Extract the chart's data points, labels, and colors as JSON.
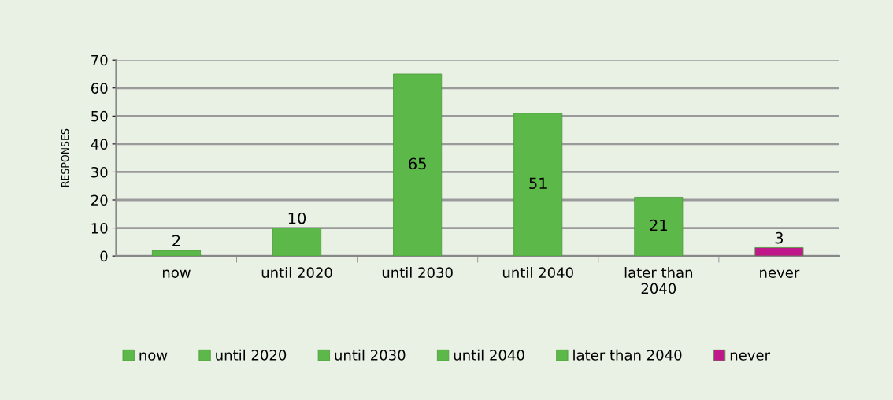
{
  "chart_data": {
    "type": "bar",
    "categories": [
      "now",
      "until 2020",
      "until 2030",
      "until 2040",
      "later than 2040",
      "never"
    ],
    "series": [
      {
        "name": "now",
        "color": "#5cb848",
        "values": [
          2,
          null,
          null,
          null,
          null,
          null
        ]
      },
      {
        "name": "until 2020",
        "color": "#5cb848",
        "values": [
          null,
          10,
          null,
          null,
          null,
          null
        ]
      },
      {
        "name": "until 2030",
        "color": "#5cb848",
        "values": [
          null,
          null,
          65,
          null,
          null,
          null
        ]
      },
      {
        "name": "until 2040",
        "color": "#5cb848",
        "values": [
          null,
          null,
          null,
          51,
          null,
          null
        ]
      },
      {
        "name": "later than 2040",
        "color": "#5cb848",
        "values": [
          null,
          null,
          null,
          null,
          21,
          null
        ]
      },
      {
        "name": "never",
        "color": "#c0188a",
        "values": [
          null,
          null,
          null,
          null,
          null,
          3
        ]
      }
    ],
    "ylabel": "RESPONSES",
    "ylim": [
      0,
      70
    ],
    "yticks": [
      0,
      10,
      20,
      30,
      40,
      50,
      60,
      70
    ],
    "grid": "y",
    "legend": "bottom",
    "data_labels": true
  }
}
